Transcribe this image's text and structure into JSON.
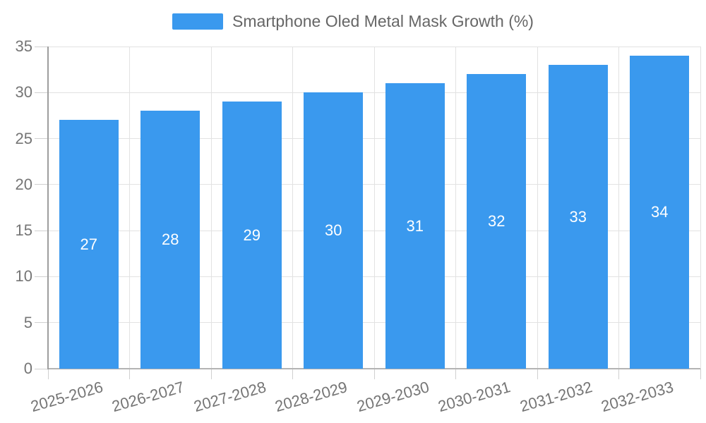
{
  "chart_data": {
    "type": "bar",
    "title": "Smartphone Oled Metal Mask Growth (%)",
    "categories": [
      "2025-2026",
      "2026-2027",
      "2027-2028",
      "2028-2029",
      "2029-2030",
      "2030-2031",
      "2031-2032",
      "2032-2033"
    ],
    "values": [
      27,
      28,
      29,
      30,
      31,
      32,
      33,
      34
    ],
    "series": [
      {
        "name": "Smartphone Oled Metal Mask Growth (%)",
        "values": [
          27,
          28,
          29,
          30,
          31,
          32,
          33,
          34
        ]
      }
    ],
    "xlabel": "",
    "ylabel": "",
    "ylim": [
      0,
      35
    ],
    "yticks": [
      0,
      5,
      10,
      15,
      20,
      25,
      30,
      35
    ],
    "grid": true,
    "legend_position": "top-center",
    "bar_value_labels_inside": true,
    "colors": {
      "bar": "#3A99EE",
      "bar_value_text": "#FFFFFF",
      "legend_text": "#666666",
      "tick_label_text": "#757575",
      "gridline": "#E2E2E2",
      "tick_mark": "#D0D0D0",
      "y_axis_line": "#9E9E9E",
      "x_axis_line": "#B3B3B3",
      "background": "#FFFFFF"
    }
  }
}
